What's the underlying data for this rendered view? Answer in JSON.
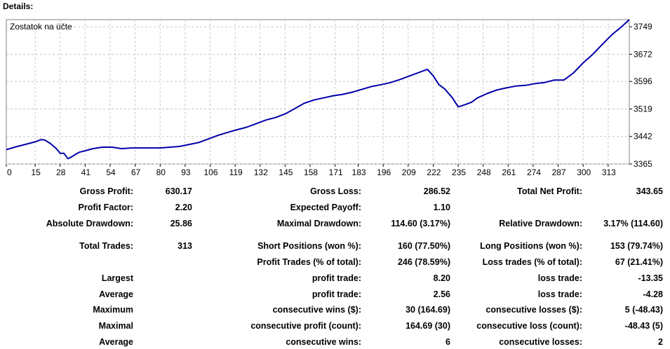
{
  "details_title": "Details:",
  "chart_data": {
    "type": "line",
    "title": "Zostatok na účte",
    "x_ticks": [
      "0",
      "15",
      "28",
      "41",
      "54",
      "67",
      "80",
      "93",
      "106",
      "119",
      "132",
      "145",
      "158",
      "171",
      "183",
      "196",
      "209",
      "222",
      "235",
      "248",
      "261",
      "274",
      "287",
      "300",
      "313"
    ],
    "y_ticks": [
      "3749",
      "3672",
      "3596",
      "3519",
      "3442",
      "3365"
    ],
    "ylim": [
      3365,
      3769
    ],
    "xlim": [
      0,
      324
    ],
    "grid": true,
    "series": [
      {
        "color": "#0000aa",
        "x": [
          0,
          5,
          10,
          15,
          18,
          20,
          23,
          26,
          28,
          30,
          32,
          34,
          36,
          38,
          41,
          45,
          50,
          55,
          60,
          65,
          70,
          80,
          90,
          100,
          110,
          118,
          125,
          130,
          135,
          140,
          145,
          150,
          155,
          160,
          165,
          170,
          175,
          180,
          185,
          190,
          195,
          200,
          205,
          210,
          215,
          219,
          222,
          225,
          228,
          232,
          235,
          238,
          242,
          245,
          250,
          255,
          260,
          265,
          270,
          275,
          280,
          285,
          290,
          295,
          300,
          305,
          310,
          315,
          320,
          324
        ],
        "y": [
          3405,
          3413,
          3420,
          3427,
          3433,
          3432,
          3422,
          3408,
          3395,
          3395,
          3380,
          3385,
          3392,
          3398,
          3402,
          3408,
          3412,
          3412,
          3408,
          3410,
          3410,
          3410,
          3414,
          3425,
          3445,
          3458,
          3468,
          3478,
          3488,
          3495,
          3505,
          3520,
          3535,
          3544,
          3550,
          3556,
          3560,
          3566,
          3574,
          3582,
          3587,
          3593,
          3602,
          3612,
          3622,
          3630,
          3612,
          3587,
          3575,
          3550,
          3525,
          3530,
          3538,
          3550,
          3562,
          3572,
          3578,
          3583,
          3585,
          3590,
          3593,
          3600,
          3600,
          3620,
          3648,
          3672,
          3700,
          3727,
          3749,
          3769
        ]
      }
    ]
  },
  "stats": {
    "gross_profit": {
      "label": "Gross Profit:",
      "value": "630.17"
    },
    "gross_loss": {
      "label": "Gross Loss:",
      "value": "286.52"
    },
    "total_net_profit": {
      "label": "Total Net Profit:",
      "value": "343.65"
    },
    "profit_factor": {
      "label": "Profit Factor:",
      "value": "2.20"
    },
    "expected_payoff": {
      "label": "Expected Payoff:",
      "value": "1.10"
    },
    "absolute_drawdown": {
      "label": "Absolute Drawdown:",
      "value": "25.86"
    },
    "maximal_drawdown": {
      "label": "Maximal Drawdown:",
      "value": "114.60 (3.17%)"
    },
    "relative_drawdown": {
      "label": "Relative Drawdown:",
      "value": "3.17% (114.60)"
    },
    "total_trades": {
      "label": "Total Trades:",
      "value": "313"
    },
    "short_positions": {
      "label": "Short Positions (won %):",
      "value": "160 (77.50%)"
    },
    "long_positions": {
      "label": "Long Positions (won %):",
      "value": "153 (79.74%)"
    },
    "profit_trades": {
      "label": "Profit Trades (% of total):",
      "value": "246 (78.59%)"
    },
    "loss_trades": {
      "label": "Loss trades (% of total):",
      "value": "67 (21.41%)"
    },
    "largest": {
      "label": "Largest",
      "profit_label": "profit trade:",
      "profit_value": "8.20",
      "loss_label": "loss trade:",
      "loss_value": "-13.35"
    },
    "average": {
      "label": "Average",
      "profit_label": "profit trade:",
      "profit_value": "2.56",
      "loss_label": "loss trade:",
      "loss_value": "-4.28"
    },
    "maximum": {
      "label": "Maximum",
      "profit_label": "consecutive wins ($):",
      "profit_value": "30 (164.69)",
      "loss_label": "consecutive losses ($):",
      "loss_value": "5 (-48.43)"
    },
    "maximal": {
      "label": "Maximal",
      "profit_label": "consecutive profit (count):",
      "profit_value": "164.69 (30)",
      "loss_label": "consecutive loss (count):",
      "loss_value": "-48.43 (5)"
    },
    "average_consecutive": {
      "label": "Average",
      "profit_label": "consecutive wins:",
      "profit_value": "6",
      "loss_label": "consecutive losses:",
      "loss_value": "2"
    }
  }
}
